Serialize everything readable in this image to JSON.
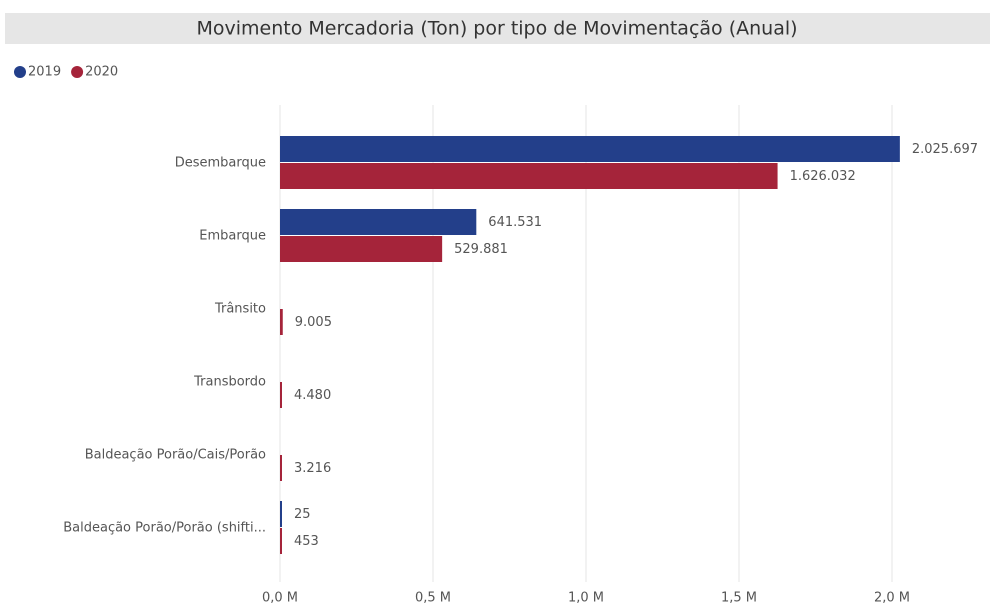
{
  "chart_data": {
    "type": "bar",
    "orientation": "horizontal",
    "title": "Movimento Mercadoria (Ton) por tipo de Movimentação (Anual)",
    "categories": [
      "Desembarque",
      "Embarque",
      "Trânsito",
      "Transbordo",
      "Baldeação Porão/Cais/Porão",
      "Baldeação Porão/Porão (shifti..."
    ],
    "series": [
      {
        "name": "2019",
        "color": "#233f8a",
        "values": [
          2025697,
          641531,
          null,
          null,
          null,
          25
        ],
        "value_labels": [
          "2.025.697",
          "641.531",
          null,
          null,
          null,
          "25"
        ]
      },
      {
        "name": "2020",
        "color": "#a5243a",
        "values": [
          1626032,
          529881,
          9005,
          4480,
          3216,
          453
        ],
        "value_labels": [
          "1.626.032",
          "529.881",
          "9.005",
          "4.480",
          "3.216",
          "453"
        ]
      }
    ],
    "xlim": [
      0,
      2300000
    ],
    "xticks": [
      {
        "value": 0,
        "label": "0,0 M"
      },
      {
        "value": 500000,
        "label": "0,5 M"
      },
      {
        "value": 1000000,
        "label": "1,0 M"
      },
      {
        "value": 1500000,
        "label": "1,5 M"
      },
      {
        "value": 2000000,
        "label": "2,0 M"
      }
    ],
    "grid": true,
    "legend": "top-left"
  }
}
